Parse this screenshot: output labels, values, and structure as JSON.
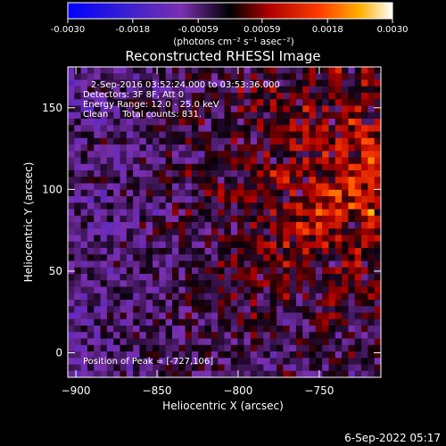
{
  "colorbar": {
    "ticks": [
      "-0.0030",
      "-0.0018",
      "-0.00059",
      "0.00059",
      "0.0018",
      "0.0030"
    ],
    "tick_values": [
      -0.003,
      -0.0018,
      -0.00059,
      0.00059,
      0.0018,
      0.003
    ],
    "range": [
      -0.003,
      0.003
    ],
    "units_label": "(photons cm⁻² s⁻¹ asec⁻²)"
  },
  "chart_data": {
    "type": "heatmap",
    "title": "Reconstructed RHESSI Image",
    "xlabel": "Heliocentric X (arcsec)",
    "ylabel": "Heliocentric Y (arcsec)",
    "xlim": [
      -905,
      -712
    ],
    "ylim": [
      -15,
      175
    ],
    "x_ticks": [
      -900,
      -850,
      -800,
      -750
    ],
    "x_tick_labels": [
      "−900",
      "−850",
      "−800",
      "−750"
    ],
    "y_ticks": [
      0,
      50,
      100,
      150
    ],
    "y_tick_labels": [
      "0",
      "50",
      "100",
      "150"
    ],
    "grid": false,
    "colormap": "blue-purple-red-yellow-white",
    "peak": [
      -727,
      106
    ],
    "annotations": [
      "2-Sep-2016 03:52:24.000 to 03:53:36.000",
      "Detectors: 3F 8F, Att 0",
      "Energy Range: 12.0 - 25.0 keV",
      "Clean     Total counts: 831.",
      "Position of Peak = [-727,106]"
    ]
  },
  "footer": {
    "timestamp": "6-Sep-2022 05:17"
  }
}
